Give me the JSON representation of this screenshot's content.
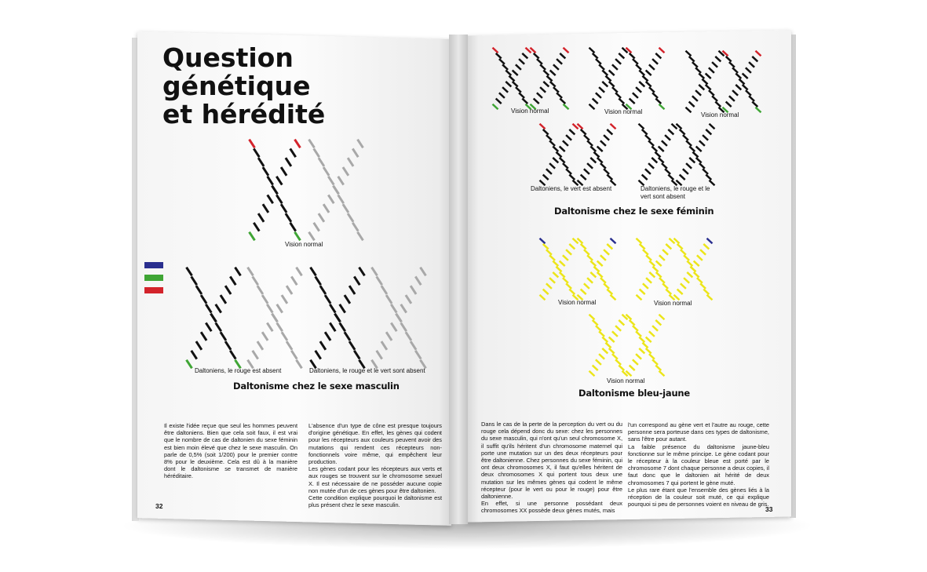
{
  "left_page": {
    "title_lines": [
      "Question",
      "génétique",
      "et hérédité"
    ],
    "captions": {
      "normal": "Vision normal",
      "red_absent": "Daltoniens, le rouge est absent",
      "red_green_absent": "Daltoniens, le rouge et le vert sont absent"
    },
    "heading": "Daltonisme chez le sexe masculin",
    "column1": "Il existe l'idée reçue que seul les hommes peuvent être daltoniens. Bien que cela soit faux, il est vrai que le nombre de cas de daltonien du sexe féminin est bien moin élevé que chez le sexe masculin. On parle de 0,5% (soit 1/200) pour le premier contre 8% pour le deuxième. Cela est dû à la manière dont le daltonisme se transmet de manière héréditaire.",
    "column2_p1": "L'absence d'un type de cône est presque toujours d'origine génétique. En effet, les gènes qui codent pour les récepteurs aux couleurs peuvent avoir des mutations qui rendent ces récepteurs non-fonctionnels voire même, qui empêchent leur production.",
    "column2_p2": "Les gènes codant pour les récepteurs aux verts et aux rouges se trouvent sur le chromosome sexuel X. Il est nécessaire de ne posséder aucune copie non mutée d'un de ces gènes pour être daltonien.",
    "column2_p3": "Cette condition explique pourquoi le daltonisme est plus présent chez le sexe masculin.",
    "page_number": "32"
  },
  "right_page": {
    "captions": {
      "normal": "Vision normal",
      "green_absent": "Daltoniens, le vert est absent",
      "red_green_absent": "Daltoniens, le rouge et le vert sont absent"
    },
    "heading_female": "Daltonisme chez le sexe féminin",
    "heading_blue_yellow": "Daltonisme bleu-jaune",
    "column1_p1": "Dans le cas de la perte de la perception du vert ou du rouge cela dépend donc du sexe: chez les personnes du sexe masculin, qui n'ont qu'un seul chromosome X, il suffit qu'ils héritent d'un chromosome maternel qui porte une mutation sur un des deux récepteurs pour être daltonienne. Chez personnes du sexe féminin, qui ont deux chromosomes X, il faut qu'elles héritent de deux chromosomes X qui portent tous deux une mutation sur les mêmes gènes qui codent le même récepteur (pour le vert ou pour le rouge) pour être daltonienne.",
    "column1_p2": "En effet, si une personne possédant deux chromosomes XX possède deux gènes mutés, mais",
    "column2_p1": "l'un correspond au gène vert et l'autre au rouge, cette personne sera porteuse dans ces types de daltonisme, sans l'être pour autant.",
    "column2_p2": "La faible présence du daltonisme jaune-bleu fonctionne sur le même principe. Le gène codant pour le récepteur à la couleur bleue est porté par le chromosome 7 dont chaque personne a deux copies, il faut donc que le daltonien ait hérité de deux chromosomes 7 qui portent le gène muté.",
    "column2_p3": "Le plus rare étant que l'ensemble des gènes liés à la réception de la couleur soit muté, ce qui explique pourquoi si peu de personnes voient en niveau de gris.",
    "page_number": "33"
  },
  "colors": {
    "black": "#111111",
    "grey": "#a8a8a8",
    "red": "#d3232b",
    "green": "#3fa535",
    "blue": "#2a2f8f",
    "yellow": "#ece51a"
  }
}
